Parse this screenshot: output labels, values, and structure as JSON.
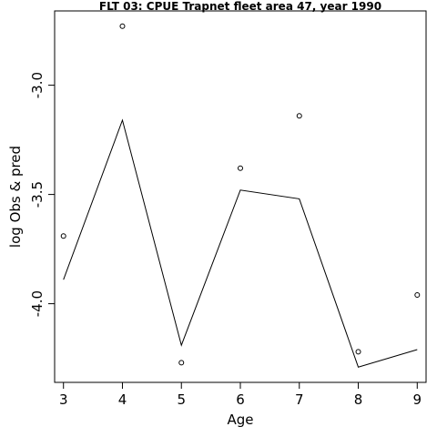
{
  "chart_data": {
    "type": "scatter",
    "title": "FLT 03: CPUE Trapnet fleet area 47, year 1990",
    "xlabel": "Age",
    "ylabel": "log Obs & pred",
    "xlim": [
      2.85,
      9.15
    ],
    "ylim": [
      -4.36,
      -2.66
    ],
    "x_ticks": [
      3,
      4,
      5,
      6,
      7,
      8,
      9
    ],
    "x_tick_labels": [
      "3",
      "4",
      "5",
      "6",
      "7",
      "8",
      "9"
    ],
    "y_ticks": [
      -4.0,
      -3.5,
      -3.0
    ],
    "y_tick_labels": [
      "-4.0",
      "-3.5",
      "-3.0"
    ],
    "grid": false,
    "series": [
      {
        "style": "points",
        "x": [
          3,
          4,
          5,
          6,
          7,
          8,
          9
        ],
        "values": [
          -3.69,
          -2.73,
          -4.27,
          -3.38,
          -3.14,
          -4.22,
          -3.96
        ]
      },
      {
        "style": "line",
        "x": [
          3,
          4,
          5,
          6,
          7,
          8,
          9
        ],
        "values": [
          -3.89,
          -3.16,
          -4.19,
          -3.48,
          -3.52,
          -4.29,
          -4.21
        ]
      }
    ]
  }
}
